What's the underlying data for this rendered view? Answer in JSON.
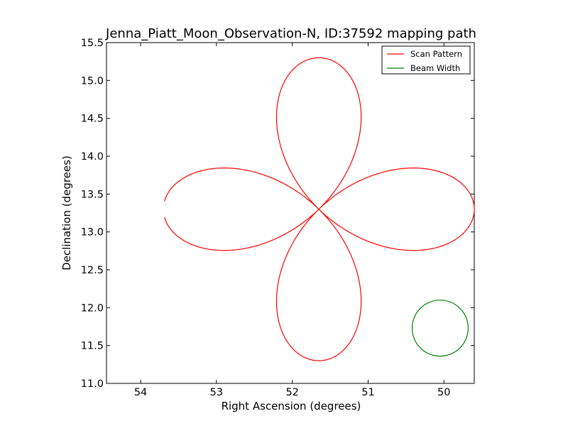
{
  "chart_data": {
    "type": "line",
    "title": "Jenna_Piatt_Moon_Observation-N, ID:37592 mapping path",
    "xlabel": "Right Ascension (degrees)",
    "ylabel": "Declination (degrees)",
    "xlim": [
      54.45,
      49.6
    ],
    "ylim": [
      11.0,
      15.5
    ],
    "x_ticks": [
      54,
      53,
      52,
      51,
      50
    ],
    "x_tick_labels": [
      "54",
      "53",
      "52",
      "51",
      "50"
    ],
    "y_ticks": [
      11.0,
      11.5,
      12.0,
      12.5,
      13.0,
      13.5,
      14.0,
      14.5,
      15.0,
      15.5
    ],
    "y_tick_labels": [
      "11.0",
      "11.5",
      "12.0",
      "12.5",
      "13.0",
      "13.5",
      "14.0",
      "14.5",
      "15.0",
      "15.5"
    ],
    "grid": false,
    "legend_position": "top-right",
    "series": [
      {
        "name": "Scan Pattern",
        "color": "#ff0000",
        "shape": "four-petal rose scan path",
        "center": [
          51.65,
          13.3
        ],
        "petal_length_ra": 2.05,
        "petal_length_dec": 2.0,
        "x": [
          53.68,
          53.6,
          53.45,
          53.2,
          52.9,
          52.6,
          52.3,
          52.05,
          51.85,
          51.65,
          51.45,
          51.25,
          51.0,
          50.7,
          50.4,
          50.1,
          49.85,
          49.62,
          49.6,
          49.62,
          49.85,
          50.1,
          50.4,
          50.7,
          51.0,
          51.25,
          51.45,
          51.65,
          51.5,
          51.32,
          51.2,
          51.15,
          51.22,
          51.38,
          51.55,
          51.65,
          51.78,
          51.95,
          52.1,
          52.14,
          52.1,
          51.98,
          51.85,
          51.65,
          51.85,
          52.05,
          52.3,
          52.6,
          52.9,
          53.2,
          53.45,
          53.6,
          53.68
        ],
        "y": [
          13.17,
          13.05,
          12.9,
          12.79,
          12.75,
          12.79,
          12.91,
          13.03,
          13.16,
          13.3,
          13.44,
          13.57,
          13.69,
          13.8,
          13.84,
          13.8,
          13.66,
          13.45,
          13.3,
          13.15,
          12.94,
          12.8,
          12.75,
          12.79,
          12.9,
          13.03,
          13.16,
          13.3,
          13.05,
          12.75,
          12.4,
          12.0,
          11.62,
          11.38,
          11.3,
          11.3,
          11.33,
          11.5,
          11.85,
          12.1,
          12.5,
          12.85,
          13.1,
          13.3,
          13.44,
          13.57,
          13.69,
          13.8,
          13.84,
          13.8,
          13.63,
          13.45,
          13.3
        ],
        "upper_petal": {
          "x": [
            51.65,
            51.48,
            51.32,
            51.2,
            51.15,
            51.2,
            51.32,
            51.5,
            51.65,
            51.8,
            51.98,
            52.1,
            52.15,
            52.1,
            51.98,
            51.82,
            51.65
          ],
          "y": [
            13.3,
            13.55,
            13.95,
            14.4,
            14.7,
            14.95,
            15.1,
            15.18,
            15.2,
            15.18,
            15.05,
            14.85,
            14.5,
            14.1,
            13.8,
            13.52,
            13.3
          ]
        }
      },
      {
        "name": "Beam Width",
        "color": "#008000",
        "shape": "circle",
        "center": [
          50.05,
          11.73
        ],
        "radius_dec": 0.37
      }
    ]
  }
}
